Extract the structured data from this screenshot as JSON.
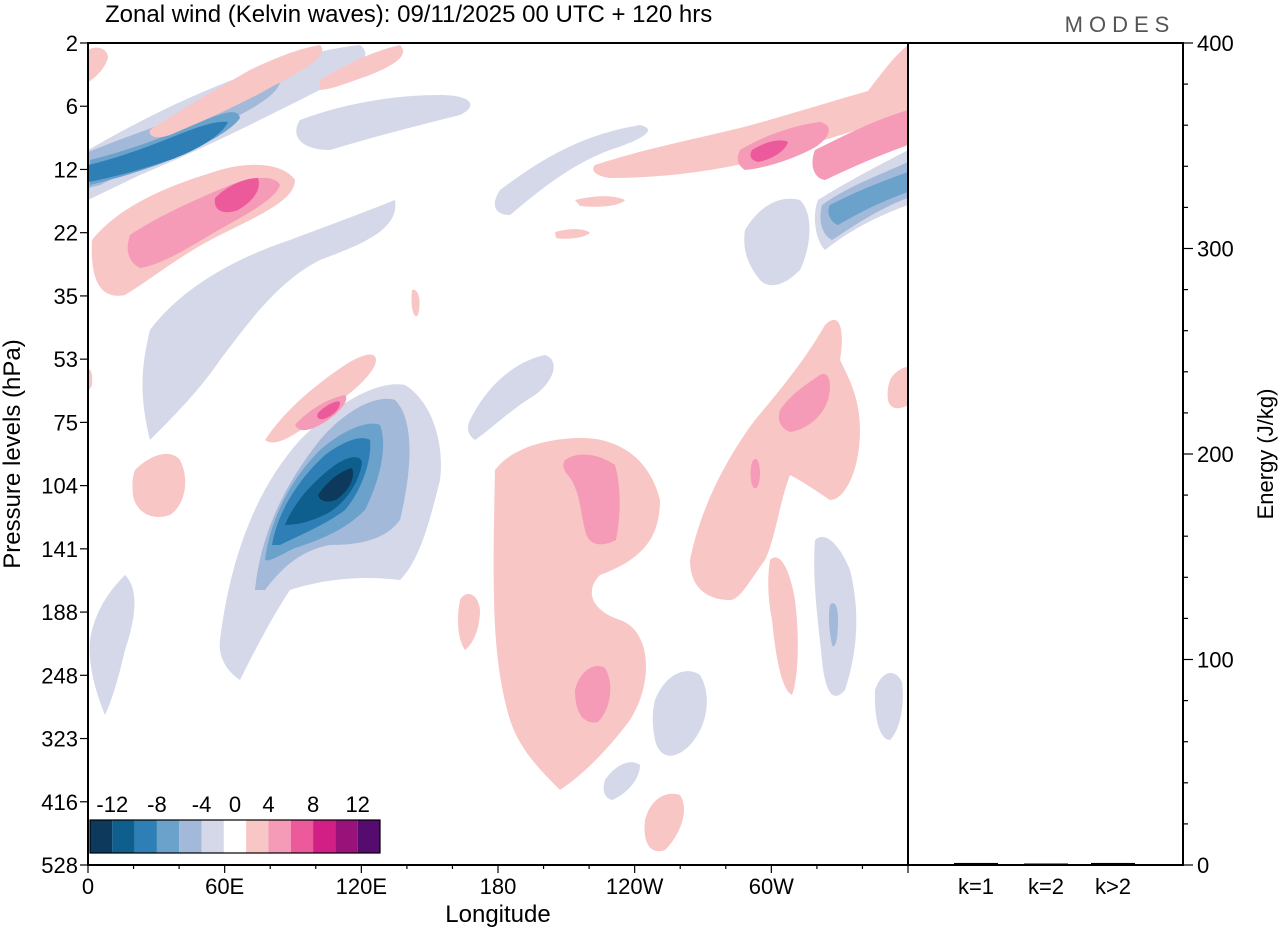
{
  "chart_data": {
    "type": "contour-hovmoller",
    "title": "Zonal wind (Kelvin waves):  09/11/2025  00 UTC  + 120 hrs",
    "logo": "MODES",
    "xlabel": "Longitude",
    "ylabel": "Pressure levels (hPa)",
    "x_ticks": [
      "0",
      "60E",
      "120E",
      "180",
      "120W",
      "60W"
    ],
    "x_range_deg": [
      0,
      360
    ],
    "y_ticks": [
      "2",
      "6",
      "12",
      "22",
      "35",
      "53",
      "75",
      "104",
      "141",
      "188",
      "248",
      "323",
      "416",
      "528"
    ],
    "y_range_hpa": [
      2,
      528
    ],
    "colorbar": {
      "labels": [
        "-12",
        "-8",
        "-4",
        "0",
        "4",
        "8",
        "12"
      ],
      "levels": [
        -14,
        -12,
        -10,
        -8,
        -6,
        -4,
        -2,
        2,
        4,
        6,
        8,
        10,
        12,
        14
      ],
      "colors": [
        "#0d3a5c",
        "#0f5f8e",
        "#2d7fb5",
        "#6aa2cc",
        "#a2b9da",
        "#d4d8e9",
        "#ffffff",
        "#f9c6c6",
        "#f59ab7",
        "#ec5a9b",
        "#d21f86",
        "#99127a",
        "#560b6e"
      ]
    },
    "features": [
      {
        "name": "negative-anomaly-upper-west",
        "sign": "negative",
        "peak": -10,
        "lon_range": [
          0,
          80
        ],
        "p_range": [
          6,
          14
        ]
      },
      {
        "name": "positive-anomaly-upper-west",
        "sign": "positive",
        "peak": 8,
        "lon_range": [
          0,
          90
        ],
        "p_range": [
          12,
          30
        ]
      },
      {
        "name": "negative-anomaly-lower-east",
        "sign": "negative",
        "peak": -12,
        "lon_range": [
          75,
          130
        ],
        "p_range": [
          70,
          160
        ]
      },
      {
        "name": "positive-anomaly-mid-east",
        "sign": "positive",
        "peak": 6,
        "lon_range": [
          75,
          110
        ],
        "p_range": [
          55,
          85
        ]
      },
      {
        "name": "positive-anomaly-central-pacific",
        "sign": "positive",
        "peak": 6,
        "lon_range": [
          180,
          250
        ],
        "p_range": [
          90,
          400
        ]
      },
      {
        "name": "positive-anomaly-upper-east-pacific",
        "sign": "positive",
        "peak": 6,
        "lon_range": [
          280,
          360
        ],
        "p_range": [
          6,
          14
        ]
      },
      {
        "name": "negative-anomaly-upper-east-pacific",
        "sign": "negative",
        "peak": -8,
        "lon_range": [
          320,
          360
        ],
        "p_range": [
          12,
          20
        ]
      },
      {
        "name": "positive-anomaly-mid-east-pacific",
        "sign": "positive",
        "peak": 6,
        "lon_range": [
          300,
          350
        ],
        "p_range": [
          55,
          110
        ]
      }
    ],
    "energy_panel": {
      "ylabel": "Energy (J/kg)",
      "y_ticks": [
        "0",
        "100",
        "200",
        "300",
        "400"
      ],
      "ylim": [
        0,
        400
      ],
      "categories": [
        "k=1",
        "k=2",
        "k>2"
      ],
      "values": [
        1,
        0.5,
        1
      ]
    }
  }
}
